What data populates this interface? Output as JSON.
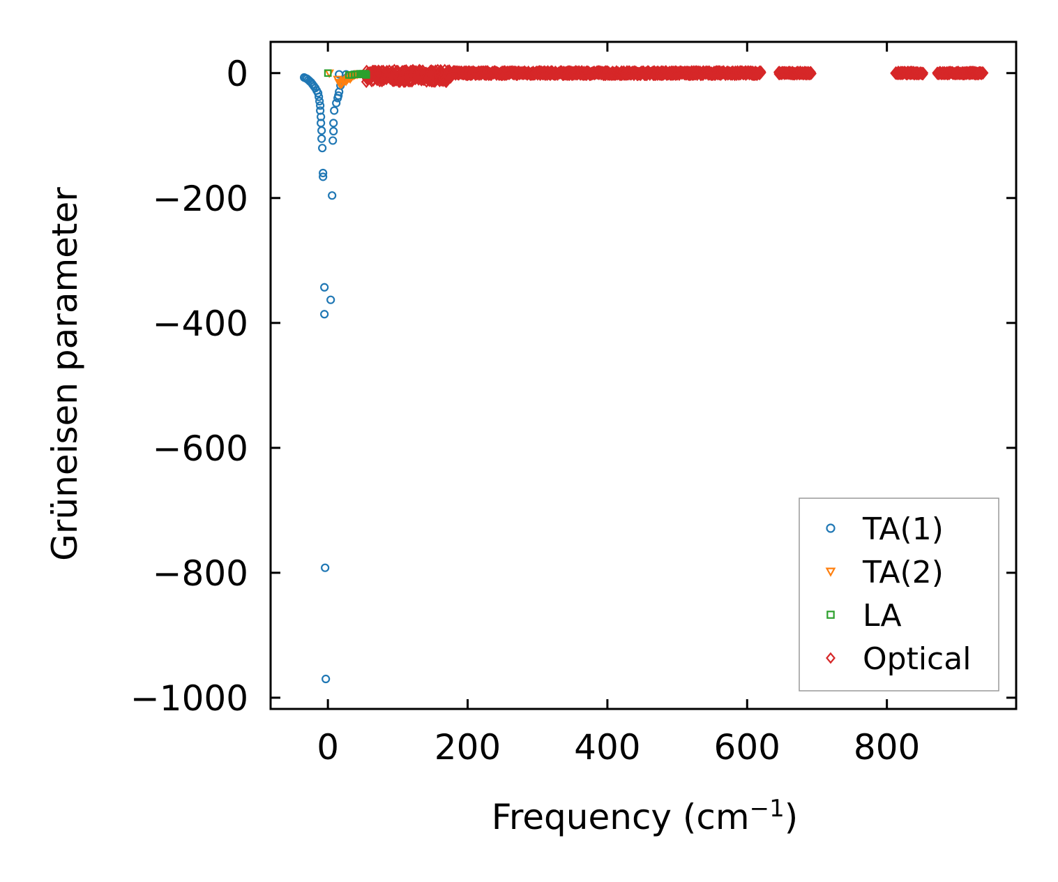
{
  "chart_data": {
    "type": "scatter",
    "xlabel": "Frequency (cm",
    "xlabel_sup": "−1",
    "xlabel_suffix": ")",
    "ylabel": "Grüneisen parameter",
    "xlim": [
      -82,
      985
    ],
    "ylim": [
      -1018,
      50
    ],
    "x_ticks": [
      0,
      200,
      400,
      600,
      800
    ],
    "x_tick_labels": [
      "0",
      "200",
      "400",
      "600",
      "800"
    ],
    "y_ticks": [
      0,
      -200,
      -400,
      -600,
      -800,
      -1000
    ],
    "y_tick_labels": [
      "0",
      "−200",
      "−400",
      "−600",
      "−800",
      "−1000"
    ],
    "grid": false,
    "legend_position": "lower-right",
    "series": [
      {
        "name": "TA(1)",
        "marker": "circle",
        "color": "#1f77b4",
        "points": [
          [
            -34,
            -7
          ],
          [
            -32,
            -8
          ],
          [
            -30,
            -9
          ],
          [
            -28,
            -11
          ],
          [
            -26,
            -13
          ],
          [
            -24,
            -15
          ],
          [
            -22,
            -18
          ],
          [
            -20,
            -21
          ],
          [
            -18,
            -24
          ],
          [
            -16,
            -28
          ],
          [
            -14,
            -32
          ],
          [
            -13,
            -38
          ],
          [
            -12,
            -45
          ],
          [
            -11,
            -52
          ],
          [
            -11,
            -60
          ],
          [
            -10,
            -70
          ],
          [
            -10,
            -80
          ],
          [
            -9,
            -92
          ],
          [
            -9,
            -105
          ],
          [
            -8,
            -120
          ],
          [
            -7,
            -160
          ],
          [
            -7,
            -166
          ],
          [
            -5,
            -343
          ],
          [
            -5,
            -386
          ],
          [
            -4,
            -792
          ],
          [
            -3,
            -970
          ],
          [
            4,
            -363
          ],
          [
            6,
            -196
          ],
          [
            7,
            -108
          ],
          [
            8,
            -93
          ],
          [
            8,
            -80
          ],
          [
            9,
            -60
          ],
          [
            12,
            -48
          ],
          [
            14,
            -40
          ],
          [
            15,
            -36
          ],
          [
            16,
            -30
          ],
          [
            18,
            -20
          ],
          [
            20,
            -15
          ],
          [
            22,
            -12
          ],
          [
            24,
            -10
          ],
          [
            26,
            -8
          ],
          [
            28,
            -6
          ],
          [
            30,
            -5
          ],
          [
            32,
            -4
          ],
          [
            34,
            -3
          ],
          [
            36,
            -3
          ],
          [
            38,
            -2
          ],
          [
            16,
            -2
          ],
          [
            26,
            -2
          ]
        ]
      },
      {
        "name": "TA(2)",
        "marker": "triangle-down",
        "color": "#ff7f0e",
        "points": [
          [
            2,
            0
          ],
          [
            14,
            -10
          ],
          [
            16,
            -15
          ],
          [
            18,
            -18
          ],
          [
            20,
            -17
          ],
          [
            22,
            -14
          ],
          [
            24,
            -12
          ],
          [
            26,
            -13
          ],
          [
            28,
            -10
          ],
          [
            30,
            -8
          ],
          [
            32,
            -9
          ],
          [
            34,
            -6
          ],
          [
            36,
            -4
          ],
          [
            38,
            -3
          ],
          [
            40,
            -2
          ],
          [
            42,
            -2
          ],
          [
            44,
            -1
          ],
          [
            46,
            -1
          ]
        ]
      },
      {
        "name": "LA",
        "marker": "square",
        "color": "#2ca02c",
        "points": [
          [
            0,
            0
          ],
          [
            30,
            -3
          ],
          [
            34,
            -3
          ],
          [
            38,
            -2
          ],
          [
            42,
            -2
          ],
          [
            46,
            -1
          ],
          [
            48,
            -2
          ],
          [
            50,
            -1
          ],
          [
            52,
            -2
          ],
          [
            54,
            -1
          ],
          [
            55,
            -3
          ]
        ]
      },
      {
        "name": "Optical",
        "marker": "diamond",
        "color": "#d62728",
        "ranges": [
          [
            55,
            180,
            -14,
            5
          ],
          [
            180,
            620,
            -3,
            3
          ],
          [
            645,
            692,
            -2,
            2
          ],
          [
            812,
            852,
            -2,
            2
          ],
          [
            872,
            938,
            -2,
            2
          ]
        ]
      }
    ]
  }
}
